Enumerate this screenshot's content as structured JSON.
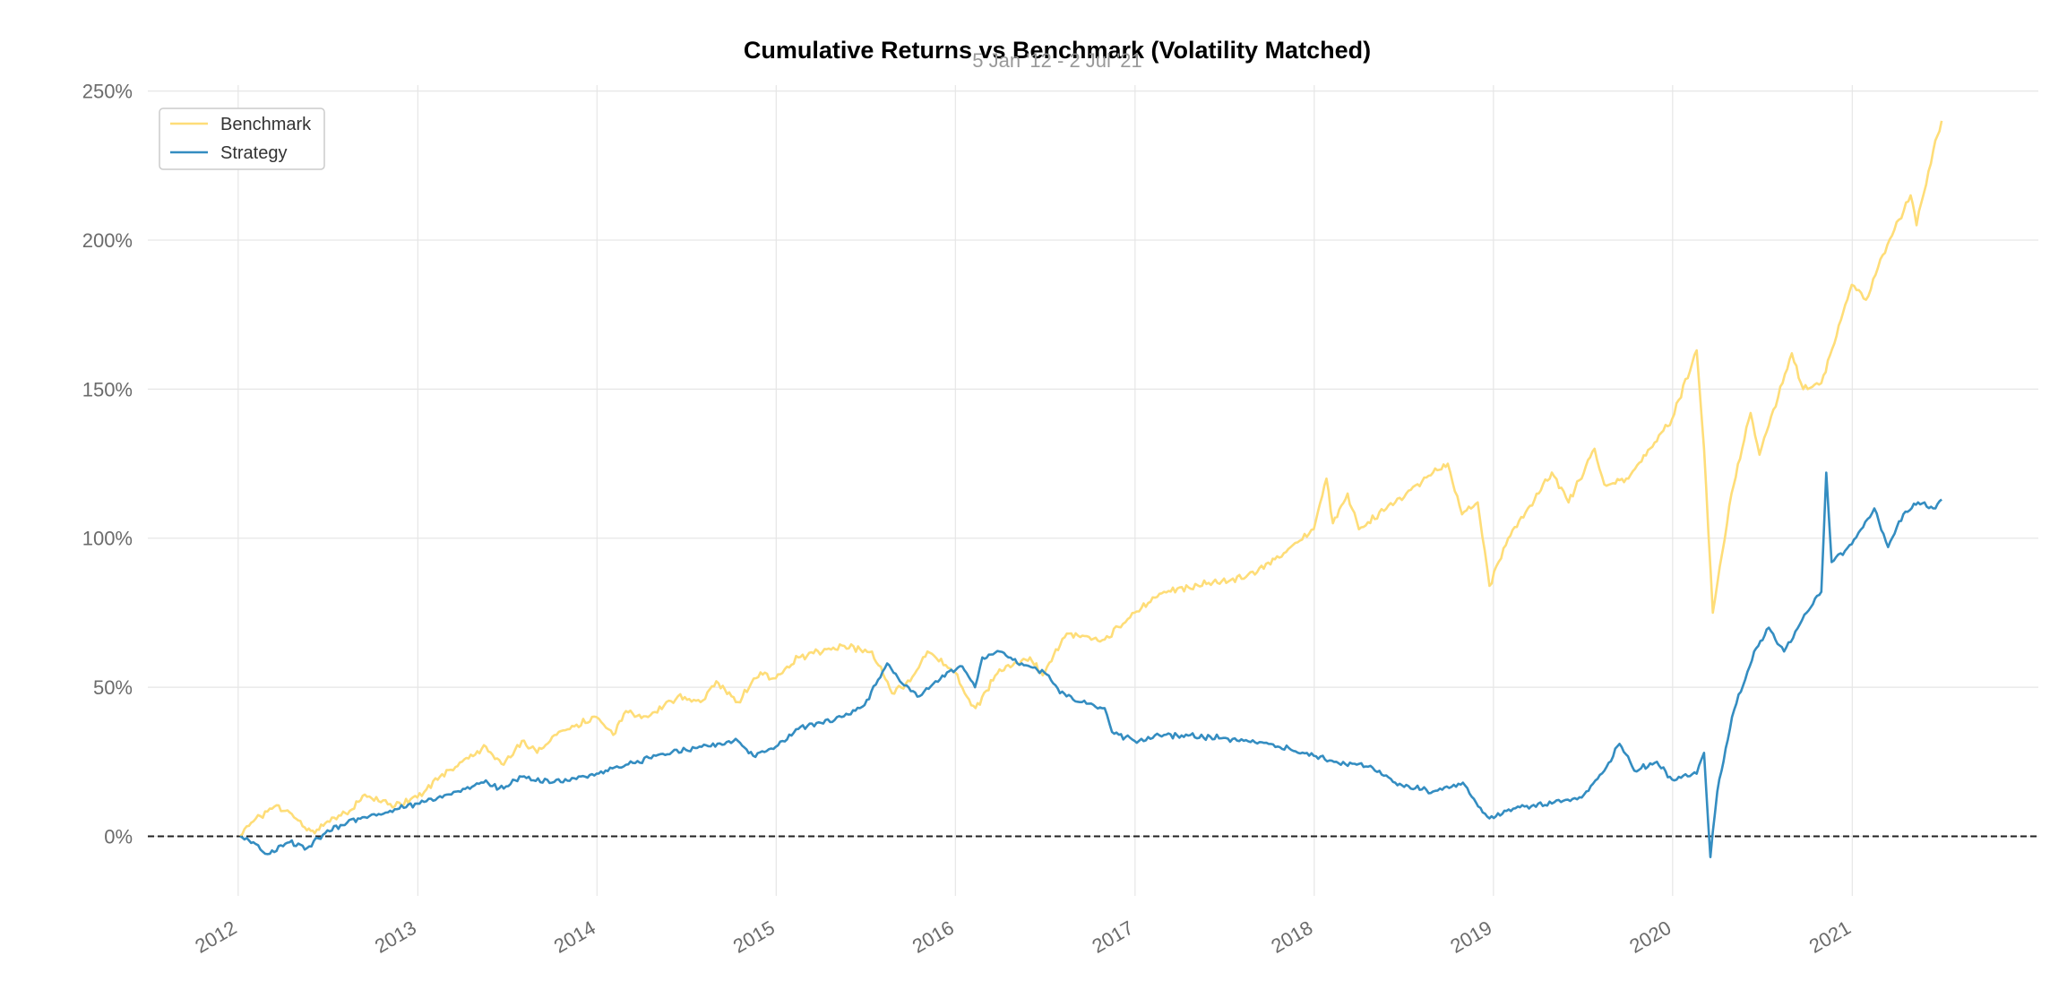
{
  "chart_data": {
    "type": "line",
    "title": "Cumulative Returns vs Benchmark (Volatility Matched)",
    "subtitle": "5 Jan '12 - 2 Jul '21",
    "xlabel": "",
    "ylabel": "",
    "x_ticks": [
      "2012",
      "2013",
      "2014",
      "2015",
      "2016",
      "2017",
      "2018",
      "2019",
      "2020",
      "2021"
    ],
    "y_ticks": [
      "0%",
      "50%",
      "100%",
      "150%",
      "200%",
      "250%"
    ],
    "y_tick_values": [
      0,
      50,
      100,
      150,
      200,
      250
    ],
    "xlim": [
      "2011-07-01",
      "2022-01-15"
    ],
    "ylim": [
      -20,
      252
    ],
    "grid": true,
    "legend_position": "top-left",
    "baseline": 0,
    "series": [
      {
        "name": "Benchmark",
        "color": "#fedd78",
        "points": [
          [
            "2012-01-05",
            0
          ],
          [
            "2012-02-01",
            5
          ],
          [
            "2012-03-15",
            10
          ],
          [
            "2012-04-15",
            8
          ],
          [
            "2012-05-20",
            2
          ],
          [
            "2012-06-05",
            1
          ],
          [
            "2012-07-01",
            5
          ],
          [
            "2012-08-20",
            9
          ],
          [
            "2012-09-15",
            14
          ],
          [
            "2012-11-15",
            10
          ],
          [
            "2012-12-31",
            13
          ],
          [
            "2013-02-15",
            20
          ],
          [
            "2013-04-01",
            25
          ],
          [
            "2013-05-20",
            30
          ],
          [
            "2013-06-25",
            24
          ],
          [
            "2013-08-01",
            32
          ],
          [
            "2013-09-01",
            28
          ],
          [
            "2013-10-15",
            35
          ],
          [
            "2013-12-31",
            40
          ],
          [
            "2014-02-03",
            34
          ],
          [
            "2014-03-01",
            42
          ],
          [
            "2014-04-15",
            40
          ],
          [
            "2014-06-15",
            47
          ],
          [
            "2014-07-31",
            45
          ],
          [
            "2014-09-01",
            52
          ],
          [
            "2014-10-15",
            45
          ],
          [
            "2014-11-30",
            55
          ],
          [
            "2014-12-31",
            53
          ],
          [
            "2015-02-15",
            60
          ],
          [
            "2015-05-15",
            64
          ],
          [
            "2015-07-15",
            62
          ],
          [
            "2015-08-25",
            48
          ],
          [
            "2015-10-01",
            52
          ],
          [
            "2015-11-05",
            62
          ],
          [
            "2015-12-31",
            55
          ],
          [
            "2016-01-20",
            48
          ],
          [
            "2016-02-11",
            43
          ],
          [
            "2016-03-31",
            56
          ],
          [
            "2016-06-01",
            60
          ],
          [
            "2016-06-27",
            54
          ],
          [
            "2016-08-15",
            68
          ],
          [
            "2016-10-31",
            66
          ],
          [
            "2016-12-31",
            75
          ],
          [
            "2017-03-01",
            82
          ],
          [
            "2017-05-31",
            85
          ],
          [
            "2017-08-15",
            87
          ],
          [
            "2017-10-31",
            95
          ],
          [
            "2017-12-31",
            103
          ],
          [
            "2018-01-26",
            120
          ],
          [
            "2018-02-08",
            105
          ],
          [
            "2018-03-10",
            115
          ],
          [
            "2018-04-02",
            103
          ],
          [
            "2018-06-15",
            112
          ],
          [
            "2018-08-31",
            122
          ],
          [
            "2018-09-30",
            125
          ],
          [
            "2018-10-29",
            108
          ],
          [
            "2018-11-30",
            112
          ],
          [
            "2018-12-24",
            84
          ],
          [
            "2019-01-31",
            100
          ],
          [
            "2019-04-30",
            122
          ],
          [
            "2019-06-03",
            112
          ],
          [
            "2019-07-26",
            130
          ],
          [
            "2019-08-15",
            118
          ],
          [
            "2019-10-03",
            120
          ],
          [
            "2019-12-31",
            140
          ],
          [
            "2020-02-19",
            163
          ],
          [
            "2020-03-05",
            130
          ],
          [
            "2020-03-23",
            75
          ],
          [
            "2020-04-30",
            115
          ],
          [
            "2020-06-08",
            142
          ],
          [
            "2020-06-26",
            128
          ],
          [
            "2020-08-31",
            162
          ],
          [
            "2020-09-23",
            150
          ],
          [
            "2020-10-30",
            152
          ],
          [
            "2020-12-31",
            185
          ],
          [
            "2021-01-29",
            180
          ],
          [
            "2021-03-04",
            195
          ],
          [
            "2021-04-30",
            215
          ],
          [
            "2021-05-12",
            205
          ],
          [
            "2021-06-15",
            230
          ],
          [
            "2021-07-02",
            240
          ]
        ]
      },
      {
        "name": "Strategy",
        "color": "#348dc1",
        "points": [
          [
            "2012-01-05",
            0
          ],
          [
            "2012-02-01",
            -2
          ],
          [
            "2012-03-01",
            -6
          ],
          [
            "2012-04-15",
            -2
          ],
          [
            "2012-05-20",
            -4
          ],
          [
            "2012-07-01",
            2
          ],
          [
            "2012-09-01",
            6
          ],
          [
            "2012-11-01",
            8
          ],
          [
            "2012-12-31",
            11
          ],
          [
            "2013-03-01",
            14
          ],
          [
            "2013-05-15",
            18
          ],
          [
            "2013-06-25",
            16
          ],
          [
            "2013-08-01",
            20
          ],
          [
            "2013-10-01",
            18
          ],
          [
            "2013-12-31",
            21
          ],
          [
            "2014-03-01",
            24
          ],
          [
            "2014-05-01",
            27
          ],
          [
            "2014-07-01",
            29
          ],
          [
            "2014-10-15",
            32
          ],
          [
            "2014-11-15",
            27
          ],
          [
            "2014-12-31",
            30
          ],
          [
            "2015-02-15",
            36
          ],
          [
            "2015-04-30",
            39
          ],
          [
            "2015-06-30",
            44
          ],
          [
            "2015-08-15",
            58
          ],
          [
            "2015-09-10",
            52
          ],
          [
            "2015-10-20",
            47
          ],
          [
            "2015-12-15",
            55
          ],
          [
            "2016-01-15",
            57
          ],
          [
            "2016-02-10",
            50
          ],
          [
            "2016-02-25",
            60
          ],
          [
            "2016-03-31",
            62
          ],
          [
            "2016-05-15",
            58
          ],
          [
            "2016-06-30",
            55
          ],
          [
            "2016-08-01",
            48
          ],
          [
            "2016-09-15",
            45
          ],
          [
            "2016-10-31",
            43
          ],
          [
            "2016-11-15",
            35
          ],
          [
            "2016-12-31",
            32
          ],
          [
            "2017-03-01",
            34
          ],
          [
            "2017-06-30",
            33
          ],
          [
            "2017-09-30",
            31
          ],
          [
            "2017-12-31",
            27
          ],
          [
            "2018-02-15",
            25
          ],
          [
            "2018-04-30",
            23
          ],
          [
            "2018-06-15",
            18
          ],
          [
            "2018-08-31",
            15
          ],
          [
            "2018-10-31",
            18
          ],
          [
            "2018-12-01",
            10
          ],
          [
            "2018-12-24",
            6
          ],
          [
            "2019-02-01",
            9
          ],
          [
            "2019-04-30",
            11
          ],
          [
            "2019-06-30",
            13
          ],
          [
            "2019-08-15",
            22
          ],
          [
            "2019-09-15",
            31
          ],
          [
            "2019-10-15",
            22
          ],
          [
            "2019-11-30",
            25
          ],
          [
            "2019-12-31",
            19
          ],
          [
            "2020-02-19",
            21
          ],
          [
            "2020-03-05",
            28
          ],
          [
            "2020-03-18",
            -7
          ],
          [
            "2020-04-01",
            15
          ],
          [
            "2020-05-01",
            40
          ],
          [
            "2020-06-15",
            62
          ],
          [
            "2020-07-15",
            70
          ],
          [
            "2020-08-15",
            62
          ],
          [
            "2020-09-30",
            75
          ],
          [
            "2020-10-30",
            82
          ],
          [
            "2020-11-09",
            122
          ],
          [
            "2020-11-20",
            92
          ],
          [
            "2020-12-31",
            98
          ],
          [
            "2021-02-15",
            110
          ],
          [
            "2021-03-15",
            97
          ],
          [
            "2021-04-15",
            108
          ],
          [
            "2021-05-15",
            112
          ],
          [
            "2021-06-15",
            110
          ],
          [
            "2021-07-02",
            113
          ]
        ]
      }
    ]
  }
}
